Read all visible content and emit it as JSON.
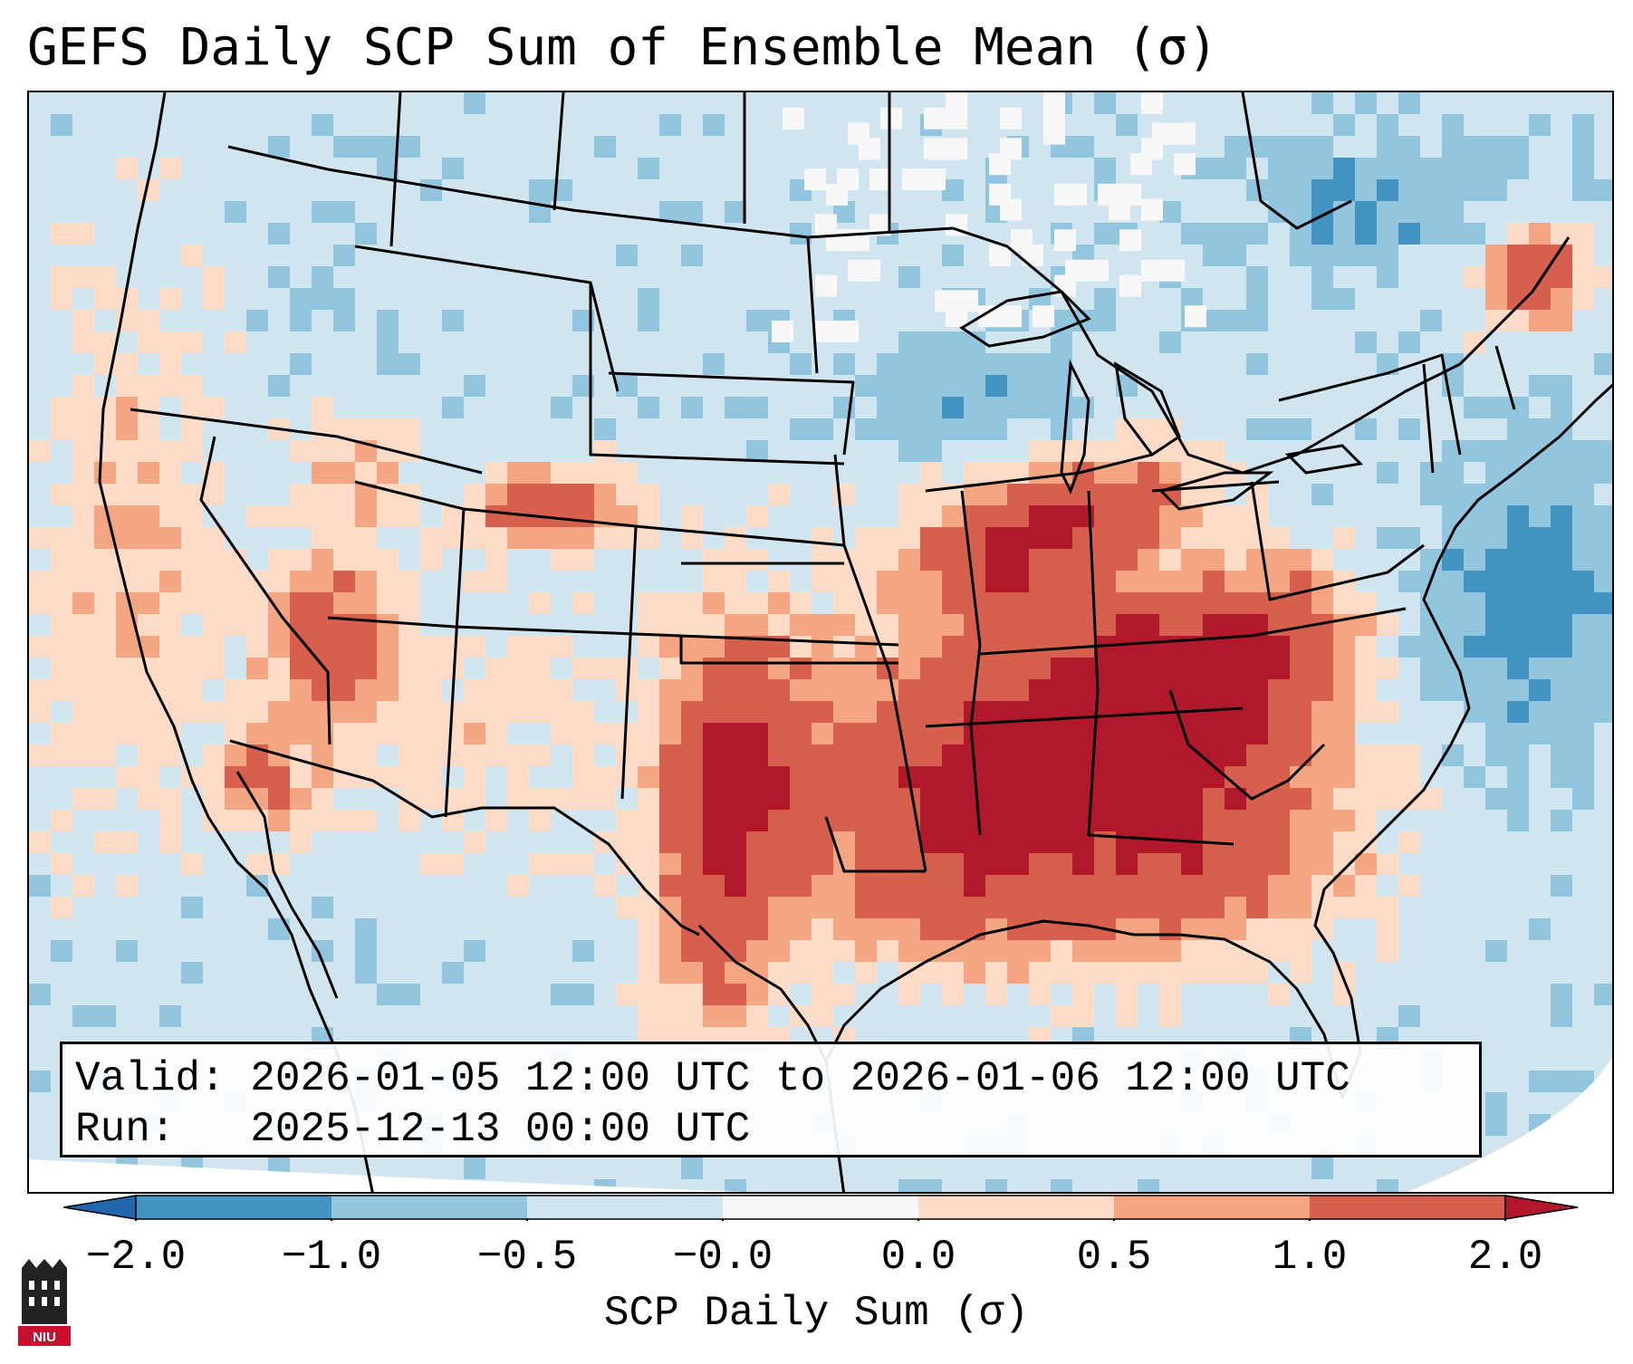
{
  "title": "GEFS Daily SCP Sum of Ensemble Mean (σ)",
  "info": {
    "valid_label": "Valid:",
    "valid_value": "2026-01-05 12:00 UTC to 2026-01-06 12:00 UTC",
    "run_label": "Run:",
    "run_value": "2025-12-13 00:00 UTC"
  },
  "colorbar": {
    "label": "SCP Daily Sum (σ)",
    "ticks": [
      "−2.0",
      "−1.0",
      "−0.5",
      "−0.0",
      "0.0",
      "0.5",
      "1.0",
      "2.0"
    ],
    "bins": [
      {
        "range": "< -2.0",
        "color": "#2166ac"
      },
      {
        "range": "-2.0 to -1.0",
        "color": "#4393c3"
      },
      {
        "range": "-1.0 to -0.5",
        "color": "#92c5de"
      },
      {
        "range": "-0.5 to -0.0",
        "color": "#d1e5f0"
      },
      {
        "range": "-0.0 to 0.0",
        "color": "#f7f7f7"
      },
      {
        "range": "0.0 to 0.5",
        "color": "#fddbc7"
      },
      {
        "range": "0.5 to 1.0",
        "color": "#f4a582"
      },
      {
        "range": "1.0 to 2.0",
        "color": "#d6604d"
      },
      {
        "range": "> 2.0",
        "color": "#b2182b"
      }
    ]
  },
  "map": {
    "region": "Contiguous United States",
    "max_anomaly_areas": [
      "Kentucky/Tennessee",
      "Oklahoma",
      "Iowa/Illinois",
      "Wyoming",
      "Nevada"
    ]
  },
  "logo": {
    "text": "NIU",
    "color": "#c8102e"
  }
}
